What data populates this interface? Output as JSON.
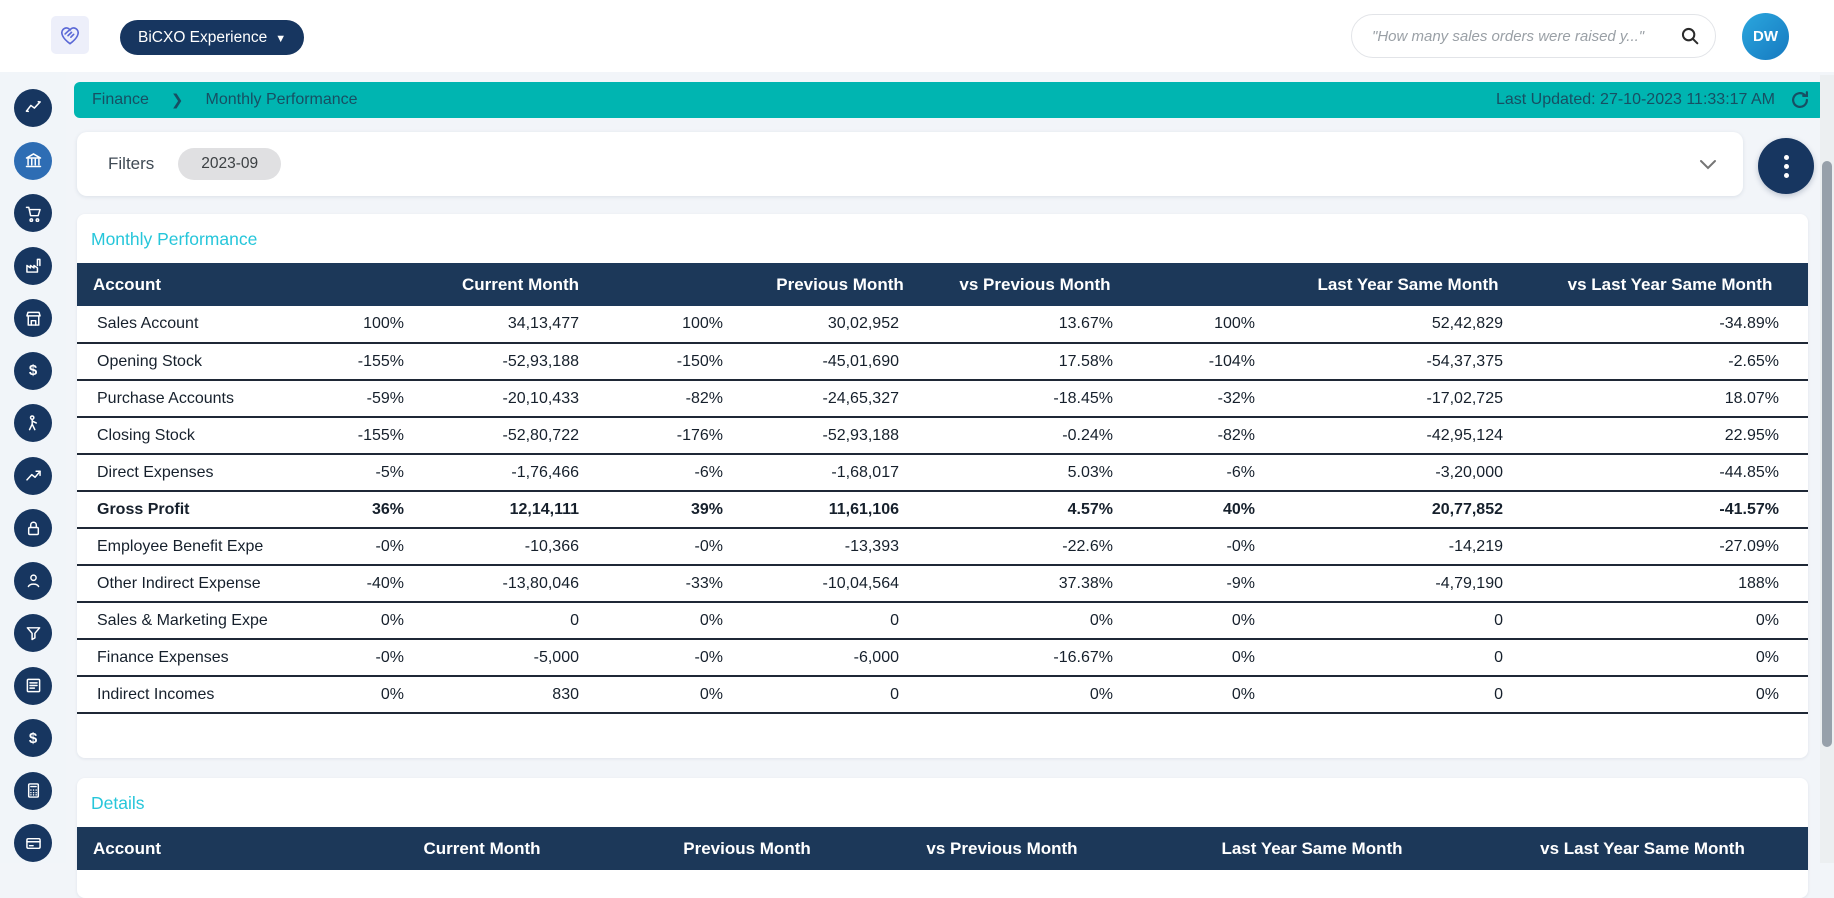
{
  "app": {
    "brand_button": "BiCXO Experience",
    "search_placeholder": "\"How many sales orders were raised y...\"",
    "avatar_initials": "DW"
  },
  "colors": {
    "navy": "#173660",
    "teal_bar": "#00b5b1",
    "section_title_cyan": "#26c6da",
    "table_header_navy": "#1c3859",
    "active_sidebar_blue": "#2e6db4"
  },
  "breadcrumb": {
    "section": "Finance",
    "page": "Monthly Performance",
    "last_updated": "Last Updated: 27-10-2023 11:33:17 AM"
  },
  "filters": {
    "label": "Filters",
    "chips": [
      "2023-09"
    ]
  },
  "sidebar": {
    "items": [
      {
        "id": "performance",
        "icon": "chart-line-icon",
        "active": false
      },
      {
        "id": "finance",
        "icon": "bank-icon",
        "active": true
      },
      {
        "id": "sales",
        "icon": "cart-icon",
        "active": false
      },
      {
        "id": "production",
        "icon": "factory-icon",
        "active": false
      },
      {
        "id": "store",
        "icon": "storefront-icon",
        "active": false
      },
      {
        "id": "cash",
        "icon": "dollar-icon",
        "active": false
      },
      {
        "id": "salesperson",
        "icon": "salesperson-icon",
        "active": false
      },
      {
        "id": "growth",
        "icon": "trend-up-icon",
        "active": false
      },
      {
        "id": "security",
        "icon": "lock-icon",
        "active": false
      },
      {
        "id": "users",
        "icon": "user-icon",
        "active": false
      },
      {
        "id": "filter",
        "icon": "funnel-icon",
        "active": false
      },
      {
        "id": "reports",
        "icon": "newspaper-icon",
        "active": false
      },
      {
        "id": "expenses",
        "icon": "dollar-icon",
        "active": false
      },
      {
        "id": "billing",
        "icon": "calculator-icon",
        "active": false
      },
      {
        "id": "payments",
        "icon": "credit-card-icon",
        "active": false
      }
    ]
  },
  "performance_table": {
    "title": "Monthly Performance",
    "headers": [
      "Account",
      "Current Month",
      "Previous Month",
      "vs Previous Month",
      "Last Year Same Month",
      "vs Last Year Same Month"
    ],
    "rows": [
      {
        "account": "Sales Account",
        "values": [
          "100%",
          "34,13,477",
          "100%",
          "30,02,952",
          "13.67%",
          "100%",
          "52,42,829",
          "-34.89%"
        ],
        "bold": false
      },
      {
        "account": "Opening Stock",
        "values": [
          "-155%",
          "-52,93,188",
          "-150%",
          "-45,01,690",
          "17.58%",
          "-104%",
          "-54,37,375",
          "-2.65%"
        ],
        "bold": false
      },
      {
        "account": "Purchase Accounts",
        "values": [
          "-59%",
          "-20,10,433",
          "-82%",
          "-24,65,327",
          "-18.45%",
          "-32%",
          "-17,02,725",
          "18.07%"
        ],
        "bold": false
      },
      {
        "account": "Closing Stock",
        "values": [
          "-155%",
          "-52,80,722",
          "-176%",
          "-52,93,188",
          "-0.24%",
          "-82%",
          "-42,95,124",
          "22.95%"
        ],
        "bold": false
      },
      {
        "account": "Direct Expenses",
        "values": [
          "-5%",
          "-1,76,466",
          "-6%",
          "-1,68,017",
          "5.03%",
          "-6%",
          "-3,20,000",
          "-44.85%"
        ],
        "bold": false
      },
      {
        "account": "Gross Profit",
        "values": [
          "36%",
          "12,14,111",
          "39%",
          "11,61,106",
          "4.57%",
          "40%",
          "20,77,852",
          "-41.57%"
        ],
        "bold": true
      },
      {
        "account": "Employee Benefit Expe",
        "values": [
          "-0%",
          "-10,366",
          "-0%",
          "-13,393",
          "-22.6%",
          "-0%",
          "-14,219",
          "-27.09%"
        ],
        "bold": false
      },
      {
        "account": "Other Indirect Expense",
        "values": [
          "-40%",
          "-13,80,046",
          "-33%",
          "-10,04,564",
          "37.38%",
          "-9%",
          "-4,79,190",
          "188%"
        ],
        "bold": false
      },
      {
        "account": "Sales & Marketing Expe",
        "values": [
          "0%",
          "0",
          "0%",
          "0",
          "0%",
          "0%",
          "0",
          "0%"
        ],
        "bold": false
      },
      {
        "account": "Finance Expenses",
        "values": [
          "-0%",
          "-5,000",
          "-0%",
          "-6,000",
          "-16.67%",
          "0%",
          "0",
          "0%"
        ],
        "bold": false
      },
      {
        "account": "Indirect Incomes",
        "values": [
          "0%",
          "830",
          "0%",
          "0",
          "0%",
          "0%",
          "0",
          "0%"
        ],
        "bold": false
      }
    ]
  },
  "details_table": {
    "title": "Details",
    "headers": [
      "Account",
      "Current Month",
      "Previous Month",
      "vs Previous Month",
      "Last Year Same Month",
      "vs Last Year Same Month"
    ]
  }
}
